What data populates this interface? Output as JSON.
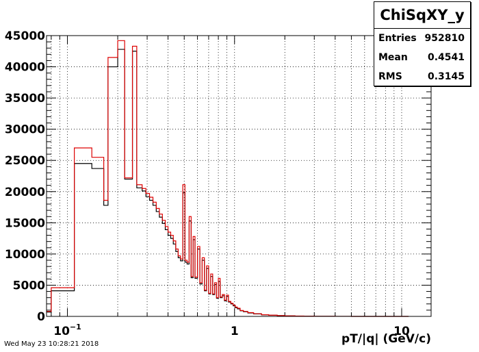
{
  "chart_data": {
    "type": "step-histogram",
    "title": "ChiSqXY_y",
    "xlabel": "pT/|q| (GeV/c)",
    "ylabel": "",
    "x_scale": "log",
    "xlim": [
      0.075,
      15
    ],
    "ylim": [
      0,
      45000
    ],
    "grid": true,
    "y_ticks": [
      0,
      5000,
      10000,
      15000,
      20000,
      25000,
      30000,
      35000,
      40000,
      45000
    ],
    "x_ticks": [
      {
        "value": 0.1,
        "label": "10",
        "sup": "−1"
      },
      {
        "value": 1,
        "label": "1",
        "sup": ""
      },
      {
        "value": 10,
        "label": "10",
        "sup": ""
      }
    ],
    "series": [
      {
        "color": "#000000",
        "edges": [
          0.075,
          0.08,
          0.11,
          0.14,
          0.165,
          0.175,
          0.2,
          0.22,
          0.245,
          0.26,
          0.28,
          0.295,
          0.31,
          0.325,
          0.34,
          0.355,
          0.37,
          0.385,
          0.4,
          0.415,
          0.43,
          0.445,
          0.46,
          0.475,
          0.49,
          0.505,
          0.52,
          0.535,
          0.55,
          0.565,
          0.58,
          0.6,
          0.62,
          0.64,
          0.66,
          0.68,
          0.7,
          0.72,
          0.74,
          0.76,
          0.78,
          0.8,
          0.82,
          0.845,
          0.87,
          0.895,
          0.92,
          0.95,
          0.98,
          1.01,
          1.04,
          1.08,
          1.13,
          1.2,
          1.3,
          1.45,
          1.6,
          1.8,
          2.0,
          2.3,
          2.6,
          3.0,
          3.5,
          4.0,
          5.0,
          6.0,
          7.5,
          9.0,
          11.0
        ],
        "values": [
          700,
          4100,
          24500,
          23700,
          17800,
          40000,
          42800,
          22000,
          42500,
          20600,
          20100,
          19200,
          18600,
          17800,
          16800,
          15900,
          14900,
          13900,
          13000,
          12500,
          11600,
          10400,
          9400,
          8900,
          19800,
          8700,
          8400,
          15300,
          6200,
          12300,
          6100,
          10800,
          5200,
          9000,
          4100,
          7700,
          3600,
          6400,
          3500,
          5100,
          2900,
          5600,
          3000,
          3300,
          2500,
          3200,
          2300,
          2000,
          1700,
          1400,
          1200,
          900,
          750,
          550,
          400,
          250,
          180,
          120,
          80,
          50,
          30,
          20,
          10,
          5,
          3,
          2,
          1,
          0
        ]
      },
      {
        "color": "#dd0000",
        "edges": [
          0.075,
          0.08,
          0.11,
          0.14,
          0.165,
          0.175,
          0.2,
          0.22,
          0.245,
          0.26,
          0.28,
          0.295,
          0.31,
          0.325,
          0.34,
          0.355,
          0.37,
          0.385,
          0.4,
          0.415,
          0.43,
          0.445,
          0.46,
          0.475,
          0.49,
          0.505,
          0.52,
          0.535,
          0.55,
          0.565,
          0.58,
          0.6,
          0.62,
          0.64,
          0.66,
          0.68,
          0.7,
          0.72,
          0.74,
          0.76,
          0.78,
          0.8,
          0.82,
          0.845,
          0.87,
          0.895,
          0.92,
          0.95,
          0.98,
          1.01,
          1.04,
          1.08,
          1.13,
          1.2,
          1.3,
          1.45,
          1.6,
          1.8,
          2.0,
          2.3,
          2.6,
          3.0,
          3.5,
          4.0,
          5.0,
          6.0,
          7.5,
          9.0,
          11.0
        ],
        "values": [
          800,
          4600,
          27000,
          25500,
          18600,
          41500,
          44200,
          22200,
          43300,
          21100,
          20500,
          19700,
          19100,
          18300,
          17300,
          16400,
          15400,
          14400,
          13500,
          13000,
          12100,
          10800,
          9700,
          9200,
          21100,
          9000,
          8700,
          16000,
          6400,
          12800,
          6300,
          11200,
          5400,
          9400,
          4200,
          8100,
          3700,
          6800,
          3600,
          5400,
          3000,
          6100,
          3100,
          3500,
          2600,
          3400,
          2400,
          2100,
          1800,
          1500,
          1300,
          950,
          800,
          600,
          430,
          270,
          190,
          130,
          85,
          55,
          32,
          22,
          11,
          6,
          3,
          2,
          1,
          0
        ]
      }
    ]
  },
  "stats": {
    "title": "ChiSqXY_y",
    "rows": [
      {
        "label": "Entries",
        "value": "952810"
      },
      {
        "label": "Mean",
        "value": "0.4541"
      },
      {
        "label": "RMS",
        "value": "0.3145"
      }
    ]
  },
  "footer": {
    "datestamp": "Wed May 23 10:28:21 2018"
  }
}
